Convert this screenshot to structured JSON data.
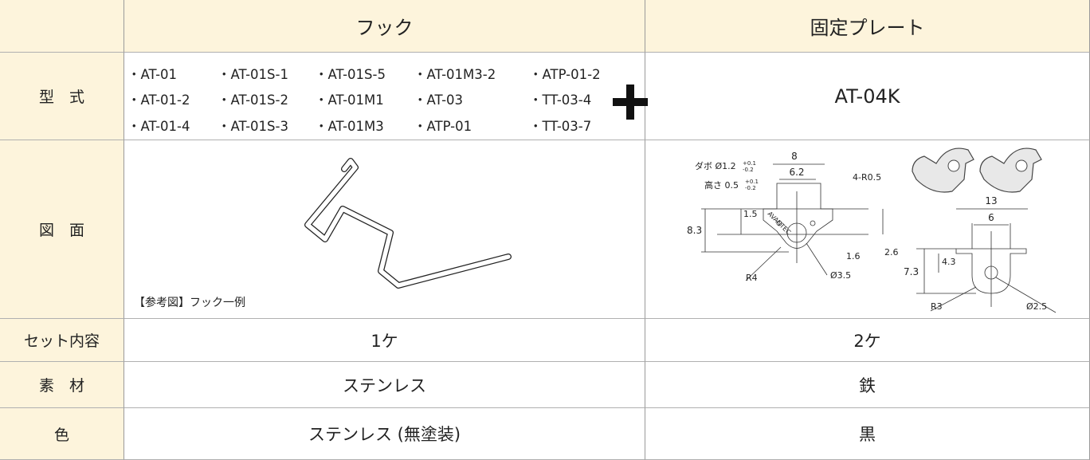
{
  "table": {
    "header": [
      "フック",
      "固定プレート"
    ],
    "model": {
      "label": "型　式",
      "hook": [
        [
          "・AT-01",
          "・AT-01S-1",
          "・AT-01S-5",
          "・AT-01M3-2",
          "・ATP-01-2"
        ],
        [
          "・AT-01-2",
          "・AT-01S-2",
          "・AT-01M1",
          "・AT-03",
          "・TT-03-4"
        ],
        [
          "・AT-01-4",
          "・AT-01S-3",
          "・AT-01M3",
          "・ATP-01",
          "・TT-03-7"
        ]
      ],
      "plate": "AT-04K"
    },
    "drawing": {
      "label": "図　面",
      "hook_caption": "【参考図】フック一例",
      "plate_labels": {
        "dowel": "ダボ Ø1.2",
        "dowel_tol_plus": "+0.1",
        "dowel_tol_minus": "-0.2",
        "height": "高さ 0.5",
        "height_tol_plus": "+0.1",
        "height_tol_minus": "-0.2",
        "width_outer": "8",
        "width_inner": "6.2",
        "corner": "4-R0.5",
        "dim_1_5": "1.5",
        "dim_8_3": "8.3",
        "brand": "AVANTEC",
        "dim_1_6": "1.6",
        "dim_2_6": "2.6",
        "radius_left": "R4",
        "hole_left": "Ø3.5",
        "width_right": "13",
        "inner_right": "6",
        "dim_4_3": "4.3",
        "dim_7_3": "7.3",
        "radius_right": "R3",
        "hole_right": "Ø2.5"
      }
    },
    "set": {
      "label": "セット内容",
      "hook": "1ケ",
      "plate": "2ケ"
    },
    "material": {
      "label": "素　材",
      "hook": "ステンレス",
      "plate": "鉄"
    },
    "color": {
      "label": "色",
      "hook": "ステンレス (無塗装)",
      "plate": "黒"
    }
  }
}
